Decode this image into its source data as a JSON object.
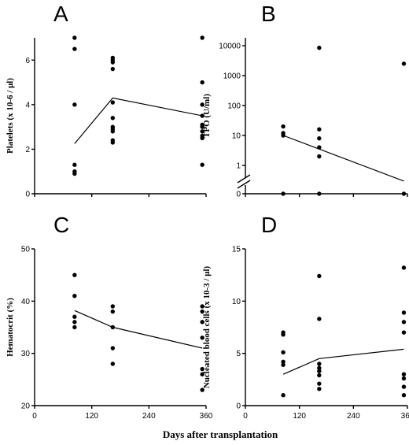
{
  "figure": {
    "xlabel": "Days after transplantation"
  },
  "chart_data": [
    {
      "panel": "A",
      "type": "scatter",
      "ylabel": "Platelets (x 10-6 / μl)",
      "ylim": [
        0,
        7
      ],
      "yticks": [
        0,
        2,
        4,
        6
      ],
      "points": [
        [
          84,
          7.0
        ],
        [
          84,
          6.5
        ],
        [
          84,
          4.0
        ],
        [
          84,
          1.3
        ],
        [
          84,
          1.0
        ],
        [
          84,
          0.9
        ],
        [
          164,
          6.1
        ],
        [
          164,
          6.0
        ],
        [
          164,
          5.9
        ],
        [
          164,
          5.6
        ],
        [
          164,
          4.1
        ],
        [
          164,
          3.4
        ],
        [
          164,
          3.0
        ],
        [
          164,
          2.9
        ],
        [
          164,
          2.8
        ],
        [
          164,
          2.4
        ],
        [
          164,
          2.3
        ],
        [
          352,
          7.0
        ],
        [
          352,
          5.0
        ],
        [
          352,
          4.0
        ],
        [
          352,
          3.5
        ],
        [
          352,
          3.1
        ],
        [
          352,
          3.0
        ],
        [
          352,
          2.8
        ],
        [
          352,
          2.6
        ],
        [
          352,
          2.5
        ],
        [
          352,
          1.3
        ]
      ],
      "trend": [
        [
          84,
          2.25
        ],
        [
          164,
          4.3
        ],
        [
          352,
          3.5
        ]
      ]
    },
    {
      "panel": "B",
      "type": "scatter",
      "scale": "log",
      "ylabel": "TPO (U/ml)",
      "yticks": [
        "0",
        "1",
        "10",
        "100",
        "1000",
        "10000"
      ],
      "points": [
        [
          84,
          20
        ],
        [
          84,
          12
        ],
        [
          84,
          10
        ],
        [
          84,
          0
        ],
        [
          164,
          8500
        ],
        [
          164,
          16
        ],
        [
          164,
          8
        ],
        [
          164,
          4
        ],
        [
          164,
          2
        ],
        [
          164,
          0
        ],
        [
          352,
          2500
        ],
        [
          352,
          0
        ]
      ],
      "trend": [
        [
          84,
          10
        ],
        [
          352,
          0.3
        ]
      ]
    },
    {
      "panel": "C",
      "type": "scatter",
      "ylabel": "Hematocrit (%)",
      "ylim": [
        20,
        50
      ],
      "yticks": [
        20,
        30,
        40,
        50
      ],
      "points": [
        [
          84,
          45
        ],
        [
          84,
          41
        ],
        [
          84,
          37
        ],
        [
          84,
          36
        ],
        [
          84,
          35
        ],
        [
          164,
          39
        ],
        [
          164,
          38
        ],
        [
          164,
          35
        ],
        [
          164,
          31
        ],
        [
          164,
          28
        ],
        [
          352,
          39
        ],
        [
          352,
          38
        ],
        [
          352,
          36
        ],
        [
          352,
          33
        ],
        [
          352,
          27
        ],
        [
          352,
          26
        ],
        [
          352,
          23
        ]
      ],
      "trend": [
        [
          84,
          38.2
        ],
        [
          164,
          35.0
        ],
        [
          352,
          31.0
        ]
      ]
    },
    {
      "panel": "D",
      "type": "scatter",
      "ylabel": "Nucleated blood cells (x 10-3 / μl)",
      "ylim": [
        0,
        15
      ],
      "yticks": [
        0,
        5,
        10,
        15
      ],
      "points": [
        [
          84,
          7.0
        ],
        [
          84,
          6.8
        ],
        [
          84,
          5.1
        ],
        [
          84,
          4.2
        ],
        [
          84,
          3.9
        ],
        [
          84,
          1.0
        ],
        [
          164,
          12.4
        ],
        [
          164,
          8.3
        ],
        [
          164,
          4.0
        ],
        [
          164,
          3.6
        ],
        [
          164,
          3.3
        ],
        [
          164,
          2.9
        ],
        [
          164,
          2.1
        ],
        [
          164,
          1.6
        ],
        [
          352,
          13.2
        ],
        [
          352,
          8.9
        ],
        [
          352,
          8.0
        ],
        [
          352,
          7.0
        ],
        [
          352,
          3.0
        ],
        [
          352,
          2.6
        ],
        [
          352,
          1.8
        ],
        [
          352,
          1.0
        ]
      ],
      "trend": [
        [
          84,
          3.0
        ],
        [
          164,
          4.5
        ],
        [
          352,
          5.4
        ]
      ]
    }
  ],
  "xaxis": {
    "xlim": [
      0,
      360
    ],
    "xticks": [
      0,
      120,
      240,
      360
    ]
  }
}
